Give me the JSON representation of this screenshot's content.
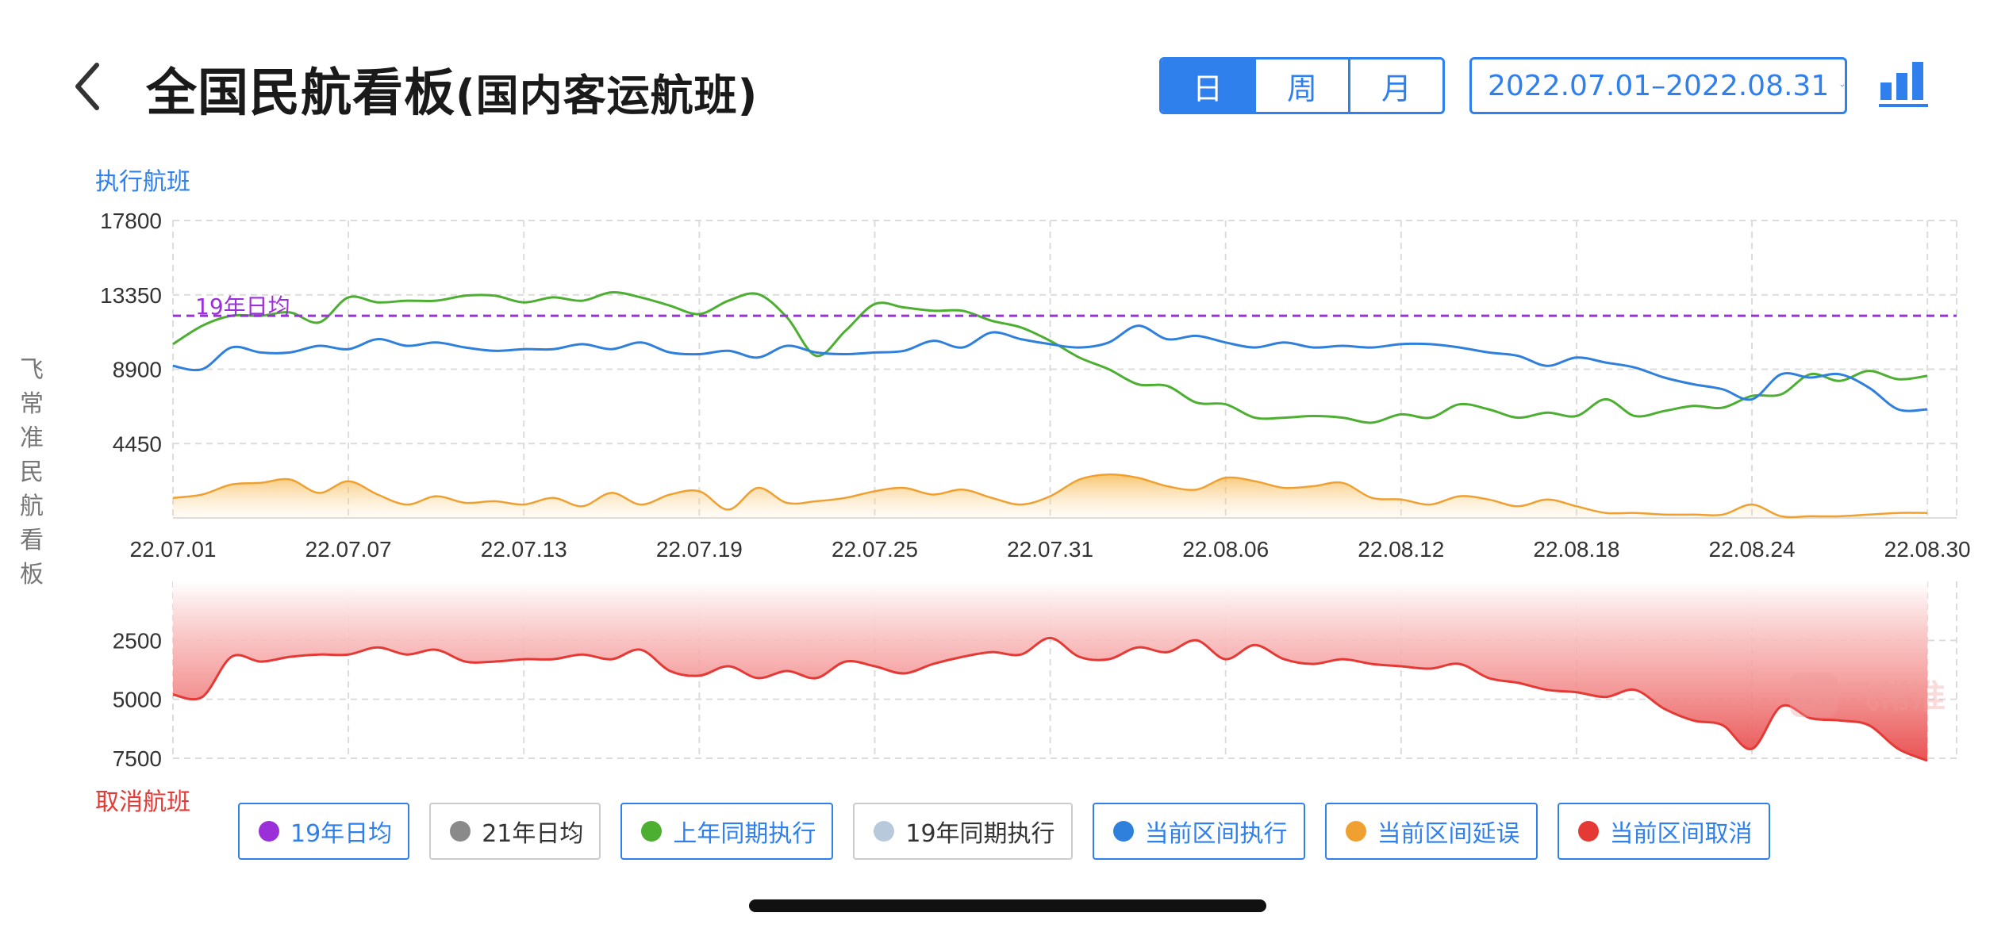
{
  "header": {
    "title_main": "全国民航看板",
    "title_sub": "(国内客运航班)",
    "period_tabs": [
      {
        "label": "日",
        "active": true
      },
      {
        "label": "周",
        "active": false
      },
      {
        "label": "月",
        "active": false
      }
    ],
    "date_range": "2022.07.01–2022.08.31",
    "icons": {
      "back": "chevron-left-icon",
      "chart_toggle": "bar-chart-icon",
      "dropdown": "chevron-down-icon"
    }
  },
  "side_label": "飞常准民航看板",
  "exec_axis_label": "执行航班",
  "cancel_axis_label": "取消航班",
  "watermark": "飞常准",
  "legend": [
    {
      "label": "19年日均",
      "color": "#9b30d9",
      "active": true
    },
    {
      "label": "21年日均",
      "color": "#8a8a8a",
      "active": false
    },
    {
      "label": "上年同期执行",
      "color": "#4caf32",
      "active": true
    },
    {
      "label": "19年同期执行",
      "color": "#b8c9db",
      "active": false
    },
    {
      "label": "当前区间执行",
      "color": "#2f7fdc",
      "active": true
    },
    {
      "label": "当前区间延误",
      "color": "#f0a030",
      "active": true
    },
    {
      "label": "当前区间取消",
      "color": "#e53935",
      "active": true
    }
  ],
  "chart_data": [
    {
      "type": "line",
      "ylabel": "执行航班",
      "ylim": [
        0,
        17800
      ],
      "yticks": [
        17800,
        13350,
        8900,
        4450
      ],
      "x_ticks": [
        "22.07.01",
        "22.07.07",
        "22.07.13",
        "22.07.19",
        "22.07.25",
        "22.07.31",
        "22.08.06",
        "22.08.12",
        "22.08.18",
        "22.08.24",
        "22.08.30"
      ],
      "x_range_days": [
        0,
        61
      ],
      "grid": true,
      "reference_line": {
        "name": "19年日均",
        "value": 12100,
        "color": "#9b30d9"
      },
      "series": [
        {
          "name": "上年同期执行",
          "color": "#4caf32",
          "values": [
            10400,
            11500,
            12100,
            12100,
            12300,
            11700,
            13200,
            12900,
            13000,
            13000,
            13300,
            13300,
            12900,
            13200,
            13000,
            13500,
            13200,
            12700,
            12200,
            13000,
            13400,
            12000,
            9700,
            11200,
            12800,
            12600,
            12400,
            12400,
            11800,
            11400,
            10600,
            9600,
            8900,
            8000,
            7900,
            6900,
            6800,
            6000,
            6000,
            6100,
            6000,
            5700,
            6200,
            6000,
            6800,
            6500,
            6000,
            6300,
            6100,
            7100,
            6100,
            6400,
            6700,
            6600,
            7300,
            7400,
            8600,
            8200,
            8800,
            8300,
            8500
          ]
        },
        {
          "name": "当前区间执行",
          "color": "#2f7fdc",
          "values": [
            9100,
            8900,
            10200,
            9900,
            9900,
            10300,
            10100,
            10700,
            10300,
            10500,
            10200,
            10000,
            10100,
            10100,
            10400,
            10100,
            10500,
            9900,
            9800,
            10000,
            9600,
            10300,
            9900,
            9800,
            9900,
            10000,
            10600,
            10200,
            11100,
            10700,
            10400,
            10200,
            10500,
            11500,
            10700,
            10900,
            10500,
            10200,
            10500,
            10200,
            10300,
            10200,
            10400,
            10400,
            10200,
            9900,
            9700,
            9100,
            9600,
            9300,
            9000,
            8400,
            8000,
            7700,
            7100,
            8600,
            8400,
            8600,
            7800,
            6500,
            6500
          ]
        },
        {
          "name": "当前区间延误",
          "color": "#f0a030",
          "type": "area",
          "values": [
            1200,
            1400,
            2000,
            2100,
            2300,
            1500,
            2200,
            1400,
            800,
            1300,
            900,
            1000,
            800,
            1200,
            700,
            1500,
            800,
            1400,
            1600,
            500,
            1800,
            900,
            1000,
            1200,
            1600,
            1800,
            1400,
            1700,
            1200,
            800,
            1300,
            2300,
            2600,
            2400,
            1900,
            1700,
            2400,
            2200,
            1800,
            1900,
            2100,
            1200,
            1100,
            800,
            1300,
            1100,
            700,
            1100,
            700,
            300,
            300,
            200,
            200,
            200,
            800,
            100,
            100,
            100,
            200,
            300,
            300
          ]
        }
      ]
    },
    {
      "type": "area",
      "ylabel": "取消航班",
      "ylim": [
        0,
        7500
      ],
      "y_inverted": true,
      "yticks": [
        2500,
        5000,
        7500
      ],
      "grid": true,
      "series": [
        {
          "name": "当前区间取消",
          "color": "#e53935",
          "values": [
            4800,
            4900,
            3200,
            3400,
            3200,
            3100,
            3100,
            2800,
            3100,
            2900,
            3400,
            3400,
            3300,
            3300,
            3100,
            3300,
            2900,
            3800,
            4000,
            3600,
            4100,
            3800,
            4100,
            3400,
            3600,
            3900,
            3500,
            3200,
            3000,
            3100,
            2400,
            3200,
            3300,
            2800,
            3000,
            2500,
            3300,
            2700,
            3300,
            3500,
            3300,
            3500,
            3600,
            3700,
            3500,
            4100,
            4300,
            4600,
            4700,
            4900,
            4600,
            5400,
            5900,
            6100,
            7100,
            5300,
            5800,
            5900,
            6100,
            7100,
            7600
          ]
        }
      ]
    }
  ]
}
